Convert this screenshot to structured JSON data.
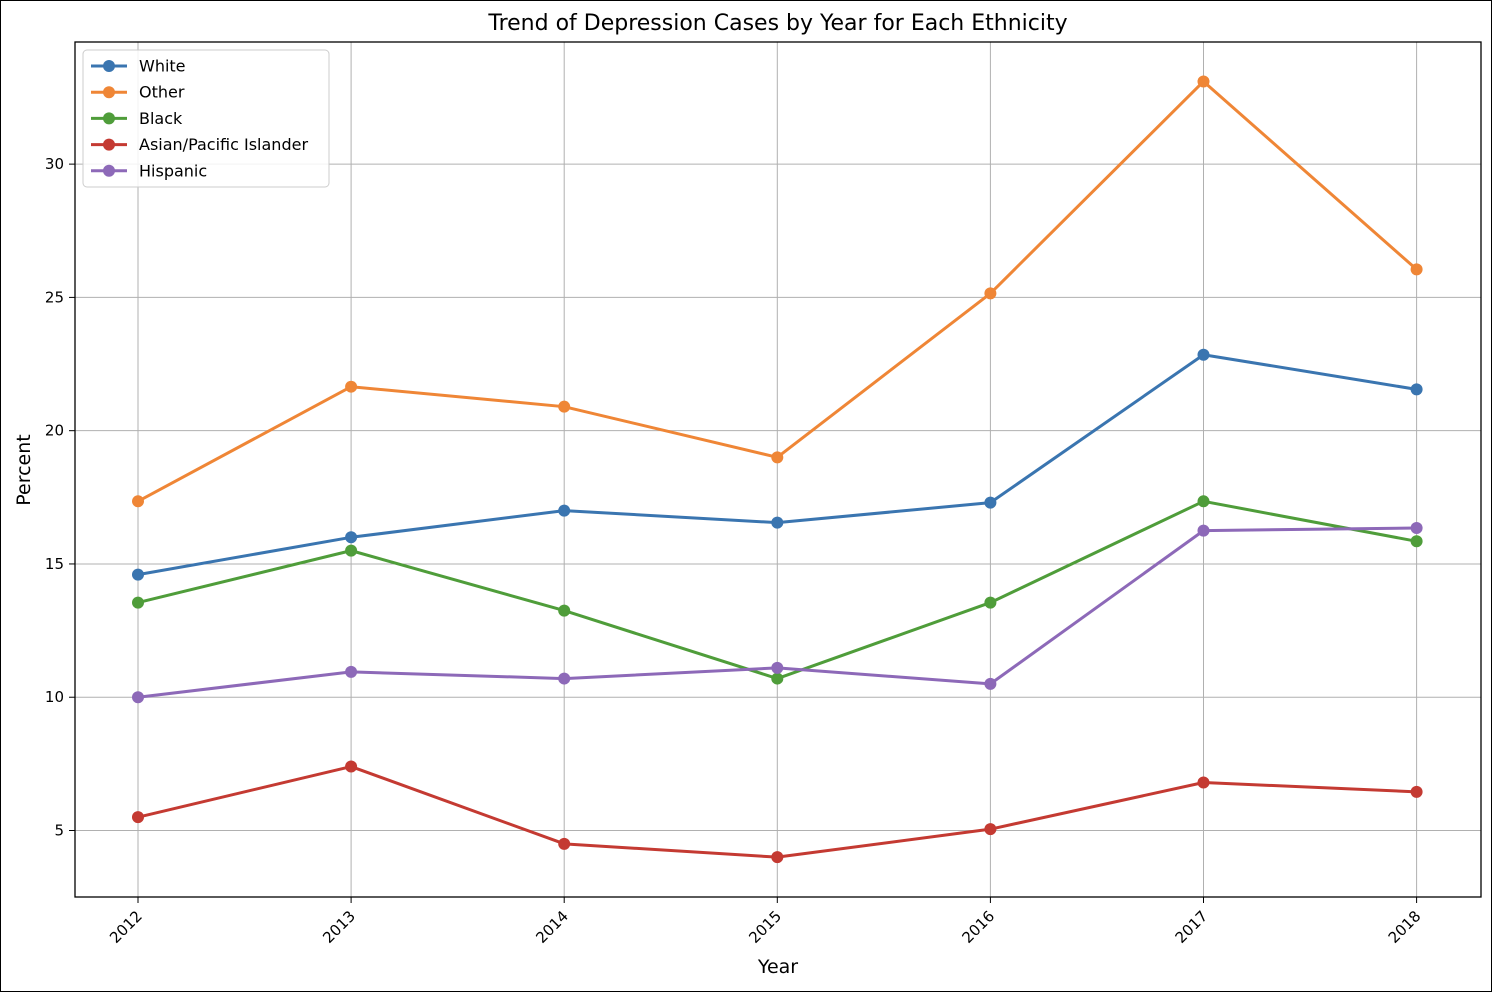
{
  "chart_data": {
    "type": "line",
    "title": "Trend of Depression Cases by Year for Each Ethnicity",
    "xlabel": "Year",
    "ylabel": "Percent",
    "categories": [
      "2012",
      "2013",
      "2014",
      "2015",
      "2016",
      "2017",
      "2018"
    ],
    "ylim": [
      2.5,
      34.5
    ],
    "yticks": [
      5,
      10,
      15,
      20,
      25,
      30
    ],
    "grid": true,
    "legend_position": "top-left",
    "series": [
      {
        "name": "White",
        "color": "#3a75b0",
        "values": [
          14.6,
          16.0,
          17.0,
          16.55,
          17.3,
          22.85,
          21.55
        ]
      },
      {
        "name": "Other",
        "color": "#ef8636",
        "values": [
          17.35,
          21.65,
          20.9,
          19.0,
          25.15,
          33.1,
          26.05
        ]
      },
      {
        "name": "Black",
        "color": "#4f9d3a",
        "values": [
          13.55,
          15.5,
          13.25,
          10.7,
          13.55,
          17.35,
          15.85
        ]
      },
      {
        "name": "Asian/Pacific Islander",
        "color": "#c43a32",
        "values": [
          5.5,
          7.4,
          4.5,
          4.0,
          5.05,
          6.8,
          6.45
        ]
      },
      {
        "name": "Hispanic",
        "color": "#8d69b8",
        "values": [
          10.0,
          10.95,
          10.7,
          11.1,
          10.5,
          16.25,
          16.35
        ]
      }
    ]
  }
}
